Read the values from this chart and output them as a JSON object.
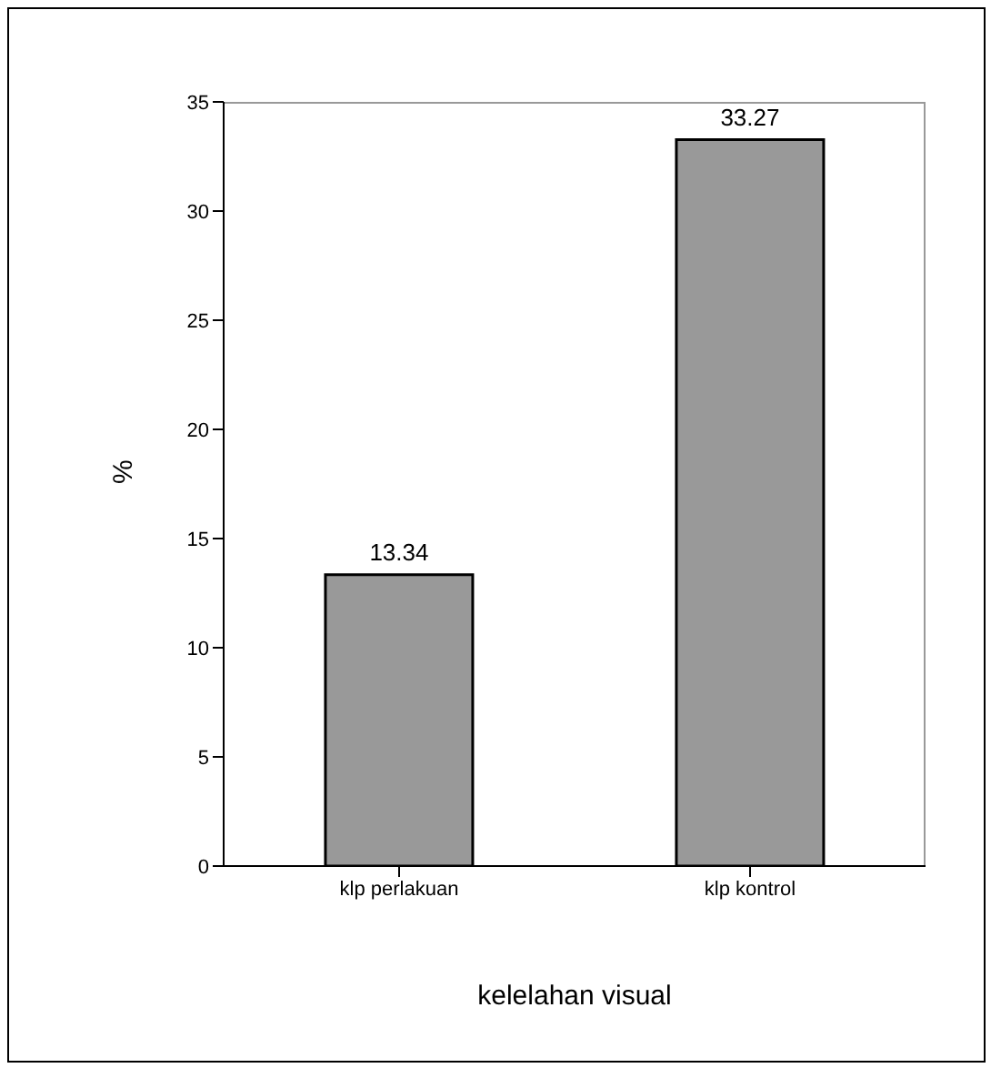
{
  "chart_data": {
    "type": "bar",
    "xlabel": "kelelahan visual",
    "ylabel": "%",
    "categories": [
      "klp perlakuan",
      "klp kontrol"
    ],
    "values": [
      13.34,
      33.27
    ],
    "color": "#999999",
    "ylim": [
      0,
      35
    ],
    "yticks": [
      0,
      5,
      10,
      15,
      20,
      25,
      30,
      35
    ],
    "data_labels": true,
    "grid": false
  }
}
